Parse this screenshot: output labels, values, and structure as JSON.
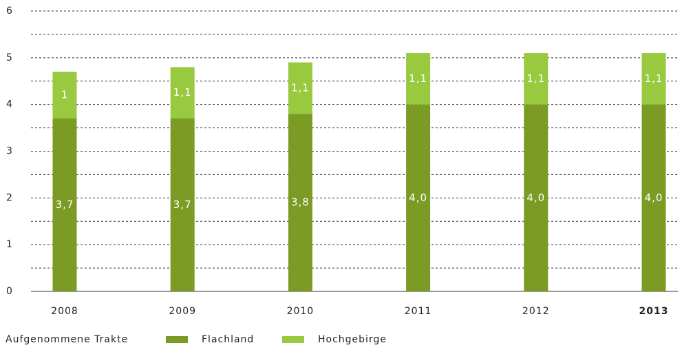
{
  "chart_data": {
    "type": "stacked_bar",
    "categories": [
      "2008",
      "2009",
      "2010",
      "2011",
      "2012",
      "2013"
    ],
    "bold_categories": [
      "2013"
    ],
    "series": [
      {
        "name": "Flachland",
        "color": "#7b9b25",
        "values": [
          3.7,
          3.7,
          3.8,
          4.0,
          4.0,
          4.0
        ],
        "value_labels": [
          "3,7",
          "3,7",
          "3,8",
          "4,0",
          "4,0",
          "4,0"
        ]
      },
      {
        "name": "Hochgebirge",
        "color": "#98c93e",
        "values": [
          1,
          1.1,
          1.1,
          1.1,
          1.1,
          1.1
        ],
        "value_labels": [
          "1",
          "1,1",
          "1,1",
          "1,1",
          "1,1",
          "1,1"
        ]
      }
    ],
    "legend_title": "Aufgenommene Trakte",
    "ylim": [
      0,
      6
    ],
    "yticks": [
      0,
      1,
      2,
      3,
      4,
      5,
      6
    ],
    "minor_grid": [
      0.5,
      1.5,
      2.5,
      3.5,
      4.5,
      5.5
    ],
    "grid": true,
    "legend": "bottom-left"
  }
}
